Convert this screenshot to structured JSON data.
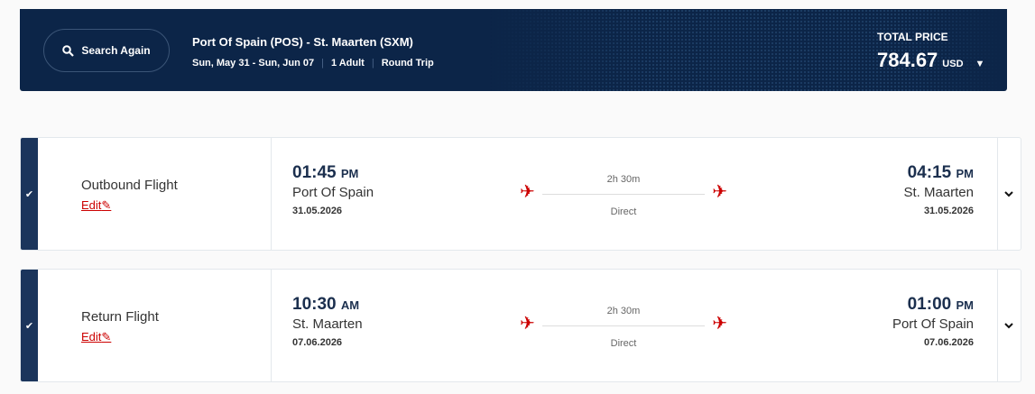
{
  "header": {
    "search_again": "Search Again",
    "route": "Port Of Spain (POS) - St. Maarten (SXM)",
    "dates": "Sun, May 31 - Sun, Jun 07",
    "passengers": "1 Adult",
    "trip_type": "Round Trip",
    "total_price_label": "TOTAL PRICE",
    "total_price": "784.67",
    "currency": "USD"
  },
  "flights": [
    {
      "title": "Outbound Flight",
      "edit": "Edit",
      "dep_time": "01:45",
      "dep_ampm": "PM",
      "dep_city": "Port Of Spain",
      "dep_date": "31.05.2026",
      "duration": "2h 30m",
      "stops": "Direct",
      "arr_time": "04:15",
      "arr_ampm": "PM",
      "arr_city": "St. Maarten",
      "arr_date": "31.05.2026"
    },
    {
      "title": "Return Flight",
      "edit": "Edit",
      "dep_time": "10:30",
      "dep_ampm": "AM",
      "dep_city": "St. Maarten",
      "dep_date": "07.06.2026",
      "duration": "2h 30m",
      "stops": "Direct",
      "arr_time": "01:00",
      "arr_ampm": "PM",
      "arr_city": "Port Of Spain",
      "arr_date": "07.06.2026"
    }
  ],
  "colors": {
    "header_bg": "#0c2548",
    "accent": "#cc0000",
    "selected_bar": "#1b355c"
  },
  "icons": {
    "search": "search-icon",
    "plane": "airplane-icon",
    "check": "check-icon",
    "edit": "pencil-icon",
    "expand": "chevron-down-icon"
  }
}
